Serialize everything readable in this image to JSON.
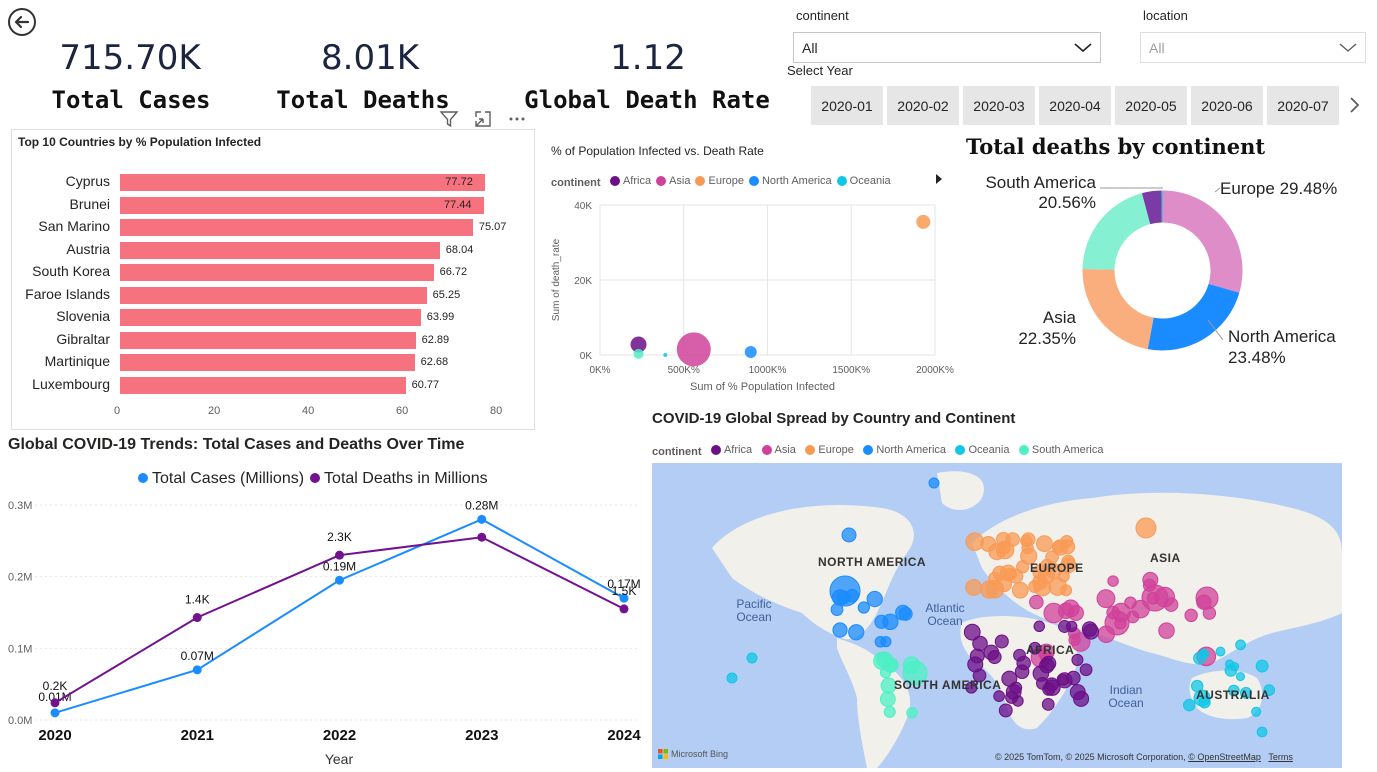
{
  "kpis": [
    {
      "value": "715.70K",
      "label": "Total Cases"
    },
    {
      "value": "8.01K",
      "label": "Total Deaths"
    },
    {
      "value": "1.12",
      "label": "Global Death Rate"
    }
  ],
  "filters": {
    "continent_label": "continent",
    "continent_value": "All",
    "location_label": "location",
    "location_value": "All",
    "year_label": "Select Year",
    "year_tiles": [
      "2020-01",
      "2020-02",
      "2020-03",
      "2020-04",
      "2020-05",
      "2020-06",
      "2020-07"
    ]
  },
  "bar_visual": {
    "title": "Top 10 Countries by % Population Infected",
    "x_ticks": [
      "0",
      "20",
      "40",
      "60",
      "80"
    ]
  },
  "scatter_visual": {
    "title": "% of Population Infected vs. Death Rate",
    "legend_title": "continent",
    "y_ticks": [
      "40K",
      "20K",
      "0K"
    ],
    "x_ticks": [
      "0K%",
      "500K%",
      "1000K%",
      "1500K%",
      "2000K%"
    ]
  },
  "donut_visual": {
    "title": "Total deaths by continent",
    "labels": [
      {
        "name": "South America",
        "pct": "20.56%"
      },
      {
        "name": "Europe",
        "pct": "29.48%"
      },
      {
        "name": "North America",
        "pct": "23.48%"
      },
      {
        "name": "Asia",
        "pct": "22.35%"
      }
    ]
  },
  "line_visual": {
    "title": "Global COVID-19 Trends: Total Cases and Deaths Over Time",
    "y_ticks": [
      "0.3M",
      "0.2M",
      "0.1M",
      "0.0M"
    ]
  },
  "map_visual": {
    "title": "COVID-19 Global Spread by Country and Continent",
    "legend_title": "continent",
    "legend": [
      {
        "name": "Africa",
        "color": "#6b0f87"
      },
      {
        "name": "Asia",
        "color": "#d0429a"
      },
      {
        "name": "Europe",
        "color": "#f99a54"
      },
      {
        "name": "North America",
        "color": "#1a8cff"
      },
      {
        "name": "Oceania",
        "color": "#12c6e6"
      },
      {
        "name": "South America",
        "color": "#4cf0c4"
      }
    ],
    "regions": [
      "NORTH AMERICA",
      "EUROPE",
      "ASIA",
      "AFRICA",
      "SOUTH AMERICA",
      "AUSTRALIA"
    ],
    "oceans": [
      "Pacific Ocean",
      "Atlantic Ocean",
      "Indian Ocean"
    ],
    "bing": "Microsoft Bing",
    "copyright": "© 2025 TomTom, © 2025 Microsoft Corporation,",
    "osm": "© OpenStreetMap",
    "terms": "Terms"
  },
  "chart_data": [
    {
      "type": "bar",
      "title": "Top 10 Countries by % Population Infected",
      "categories": [
        "Cyprus",
        "Brunei",
        "San Marino",
        "Austria",
        "South Korea",
        "Faroe Islands",
        "Slovenia",
        "Gibraltar",
        "Martinique",
        "Luxembourg"
      ],
      "values": [
        77.72,
        77.44,
        75.07,
        68.04,
        66.72,
        65.25,
        63.99,
        62.89,
        62.68,
        60.77
      ],
      "xlim": [
        0,
        80
      ],
      "color": "#f6727e"
    },
    {
      "type": "scatter",
      "title": "% of Population Infected vs. Death Rate",
      "xlabel": "Sum of % Population Infected",
      "ylabel": "Sum of death_rate",
      "xlim": [
        0,
        2000
      ],
      "ylim": [
        0,
        40000
      ],
      "series": [
        {
          "name": "Africa",
          "color": "#6b0f87",
          "points": [
            [
              230,
              2800,
              8
            ]
          ]
        },
        {
          "name": "Asia",
          "color": "#d0429a",
          "points": [
            [
              560,
              1500,
              17
            ]
          ]
        },
        {
          "name": "Europe",
          "color": "#f99a54",
          "points": [
            [
              1930,
              35500,
              7
            ]
          ]
        },
        {
          "name": "North America",
          "color": "#1a8cff",
          "points": [
            [
              900,
              800,
              6
            ]
          ]
        },
        {
          "name": "Oceania",
          "color": "#12c6e6",
          "points": [
            [
              390,
              0,
              2
            ]
          ]
        },
        {
          "name": "South America",
          "color": "#4cf0c4",
          "points": [
            [
              230,
              300,
              5
            ]
          ]
        }
      ]
    },
    {
      "type": "pie",
      "title": "Total deaths by continent",
      "categories": [
        "Europe",
        "North America",
        "Asia",
        "South America",
        "Africa",
        "Oceania"
      ],
      "values": [
        29.48,
        23.48,
        22.35,
        20.56,
        3.9,
        0.23
      ],
      "colors": [
        "#de8dc9",
        "#1a8cff",
        "#fbae7d",
        "#86f0d3",
        "#7b3aa4",
        "#12c6e6"
      ]
    },
    {
      "type": "line",
      "title": "Global COVID-19 Trends: Total Cases and Deaths Over Time",
      "xlabel": "Year",
      "x": [
        "2020",
        "2021",
        "2022",
        "2023",
        "2024"
      ],
      "ylim": [
        0,
        0.3
      ],
      "series": [
        {
          "name": "Total Cases (Millions)",
          "color": "#1a8cff",
          "values": [
            0.01,
            0.07,
            0.195,
            0.28,
            0.17
          ],
          "labels": [
            "0.01M",
            "0.07M",
            "0.19M",
            "0.28M",
            "0.17M"
          ]
        },
        {
          "name": "Total Deaths in Millions",
          "color": "#72128f",
          "values": [
            0.024,
            0.143,
            0.23,
            0.255,
            0.155
          ],
          "labels": [
            "0.2K",
            "1.4K",
            "2.3K",
            "",
            "1.5K"
          ]
        }
      ]
    }
  ]
}
